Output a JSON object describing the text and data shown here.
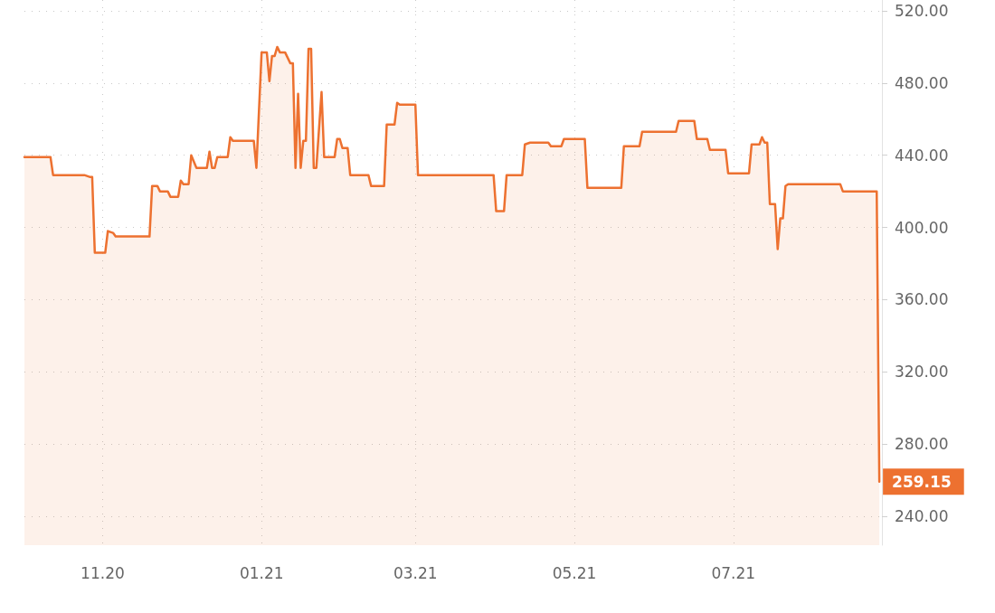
{
  "chart_data": {
    "type": "area",
    "x": [
      "2020-10-02",
      "2020-10-12",
      "2020-10-13",
      "2020-10-25",
      "2020-10-27",
      "2020-10-28",
      "2020-10-29",
      "2020-11-02",
      "2020-11-03",
      "2020-11-05",
      "2020-11-06",
      "2020-11-19",
      "2020-11-20",
      "2020-11-22",
      "2020-11-23",
      "2020-11-26",
      "2020-11-27",
      "2020-11-30",
      "2020-12-01",
      "2020-12-02",
      "2020-12-04",
      "2020-12-05",
      "2020-12-07",
      "2020-12-11",
      "2020-12-12",
      "2020-12-13",
      "2020-12-14",
      "2020-12-15",
      "2020-12-19",
      "2020-12-20",
      "2020-12-21",
      "2020-12-29",
      "2020-12-30",
      "2021-01-01",
      "2021-01-03",
      "2021-01-04",
      "2021-01-05",
      "2021-01-06",
      "2021-01-07",
      "2021-01-08",
      "2021-01-10",
      "2021-01-12",
      "2021-01-13",
      "2021-01-14",
      "2021-01-15",
      "2021-01-16",
      "2021-01-17",
      "2021-01-18",
      "2021-01-19",
      "2021-01-20",
      "2021-01-21",
      "2021-01-22",
      "2021-01-24",
      "2021-01-25",
      "2021-01-29",
      "2021-01-30",
      "2021-01-31",
      "2021-02-01",
      "2021-02-03",
      "2021-02-04",
      "2021-02-11",
      "2021-02-12",
      "2021-02-17",
      "2021-02-18",
      "2021-02-21",
      "2021-02-22",
      "2021-02-23",
      "2021-03-01",
      "2021-03-02",
      "2021-03-31",
      "2021-04-01",
      "2021-04-04",
      "2021-04-05",
      "2021-04-11",
      "2021-04-12",
      "2021-04-14",
      "2021-04-21",
      "2021-04-22",
      "2021-04-26",
      "2021-04-27",
      "2021-05-05",
      "2021-05-06",
      "2021-05-19",
      "2021-05-20",
      "2021-05-26",
      "2021-05-27",
      "2021-06-09",
      "2021-06-10",
      "2021-06-16",
      "2021-06-17",
      "2021-06-21",
      "2021-06-22",
      "2021-06-28",
      "2021-06-29",
      "2021-07-07",
      "2021-07-08",
      "2021-07-11",
      "2021-07-12",
      "2021-07-13",
      "2021-07-14",
      "2021-07-15",
      "2021-07-17",
      "2021-07-18",
      "2021-07-19",
      "2021-07-20",
      "2021-07-21",
      "2021-07-22",
      "2021-08-11",
      "2021-08-12",
      "2021-08-25",
      "2021-08-26"
    ],
    "series": [
      {
        "color": "#ed7130",
        "values": [
          439,
          439,
          429,
          429,
          428,
          428,
          386,
          386,
          398,
          397,
          395,
          395,
          423,
          423,
          420,
          420,
          417,
          417,
          426,
          424,
          424,
          440,
          433,
          433,
          442,
          433,
          433,
          439,
          439,
          450,
          448,
          448,
          433,
          497,
          497,
          481,
          495,
          495,
          500,
          497,
          497,
          491,
          491,
          433,
          474,
          433,
          448,
          448,
          499,
          499,
          433,
          433,
          475,
          439,
          439,
          449,
          449,
          444,
          444,
          429,
          429,
          423,
          423,
          457,
          457,
          469,
          468,
          468,
          429,
          429,
          409,
          409,
          429,
          429,
          446,
          447,
          447,
          445,
          445,
          449,
          449,
          422,
          422,
          445,
          445,
          453,
          453,
          459,
          459,
          449,
          449,
          443,
          443,
          430,
          430,
          446,
          446,
          450,
          447,
          447,
          413,
          413,
          388,
          405,
          405,
          423,
          424,
          424,
          420,
          420,
          259.15
        ],
        "value_labels": [
          null,
          null,
          null,
          null,
          null,
          null,
          null,
          null,
          null,
          null,
          null,
          null,
          null,
          null,
          null,
          null,
          null,
          null,
          null,
          null,
          null,
          null,
          null,
          null,
          null,
          null,
          null,
          null,
          null,
          null,
          null,
          null,
          null,
          null,
          null,
          null,
          null,
          null,
          null,
          null,
          null,
          null,
          null,
          null,
          null,
          null,
          null,
          null,
          null,
          null,
          null,
          null,
          null,
          null,
          null,
          null,
          null,
          null,
          null,
          null,
          null,
          null,
          null,
          null,
          null,
          null,
          null,
          null,
          null,
          null,
          null,
          null,
          null,
          null,
          null,
          null,
          null,
          null,
          null,
          null,
          null,
          null,
          null,
          null,
          null,
          null,
          null,
          null,
          null,
          null,
          null,
          null,
          null,
          null,
          null,
          null,
          null,
          null,
          null,
          null,
          null,
          null,
          null,
          null,
          null,
          null,
          null,
          null,
          null,
          null,
          "259.15"
        ]
      }
    ],
    "xlim": [
      "2020-10-02",
      "2021-08-27"
    ],
    "xticks": [
      {
        "value": "2020-11-01",
        "label": "11.20"
      },
      {
        "value": "2021-01-01",
        "label": "01.21"
      },
      {
        "value": "2021-03-01",
        "label": "03.21"
      },
      {
        "value": "2021-05-01",
        "label": "05.21"
      },
      {
        "value": "2021-07-01",
        "label": "07.21"
      }
    ],
    "ylim": [
      224,
      526
    ],
    "yticks": [
      {
        "value": 240,
        "label": "240.00"
      },
      {
        "value": 280,
        "label": "280.00"
      },
      {
        "value": 320,
        "label": "320.00"
      },
      {
        "value": 360,
        "label": "360.00"
      },
      {
        "value": 400,
        "label": "400.00"
      },
      {
        "value": 440,
        "label": "440.00"
      },
      {
        "value": 480,
        "label": "480.00"
      },
      {
        "value": 520,
        "label": "520.00"
      }
    ],
    "grid": true,
    "marker": "none",
    "line_style": "solid"
  }
}
